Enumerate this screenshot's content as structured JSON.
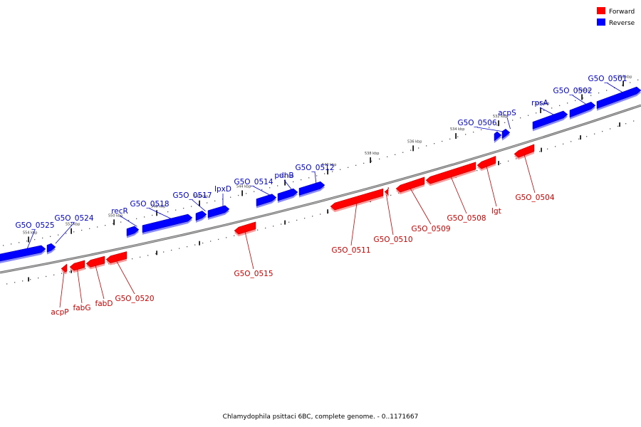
{
  "caption": "Chlamydophila psittaci 6BC, complete genome. - 0..1171667",
  "legend": [
    {
      "label": "Forward",
      "color": "#ff0000"
    },
    {
      "label": "Reverse",
      "color": "#0000ff"
    }
  ],
  "colors": {
    "forward": "#ff0000",
    "reverse": "#0000ff",
    "label_forward": "#cc0000",
    "label_reverse": "#0000cc",
    "backbone": "#888888"
  },
  "scale_ticks": [
    "526 kbp",
    "528 kbp",
    "530 kbp",
    "532 kbp",
    "534 kbp",
    "536 kbp",
    "538 kbp",
    "540 kbp",
    "542 kbp",
    "544 kbp",
    "546 kbp",
    "548 kbp",
    "550 kbp",
    "552 kbp",
    "554 kbp"
  ],
  "genes_reverse": [
    "G5O_0501",
    "G5O_0502",
    "rpsA",
    "acpS",
    "G5O_0506",
    "G5O_0512",
    "pdhB",
    "G5O_0514",
    "lpxD",
    "G5O_0517",
    "G5O_0518",
    "recR",
    "G5O_0524",
    "G5O_0525"
  ],
  "genes_forward": [
    "G5O_0504",
    "lgt",
    "G5O_0508",
    "G5O_0509",
    "G5O_0510",
    "G5O_0511",
    "G5O_0515",
    "G5O_0520",
    "fabD",
    "fabG",
    "acpP"
  ]
}
